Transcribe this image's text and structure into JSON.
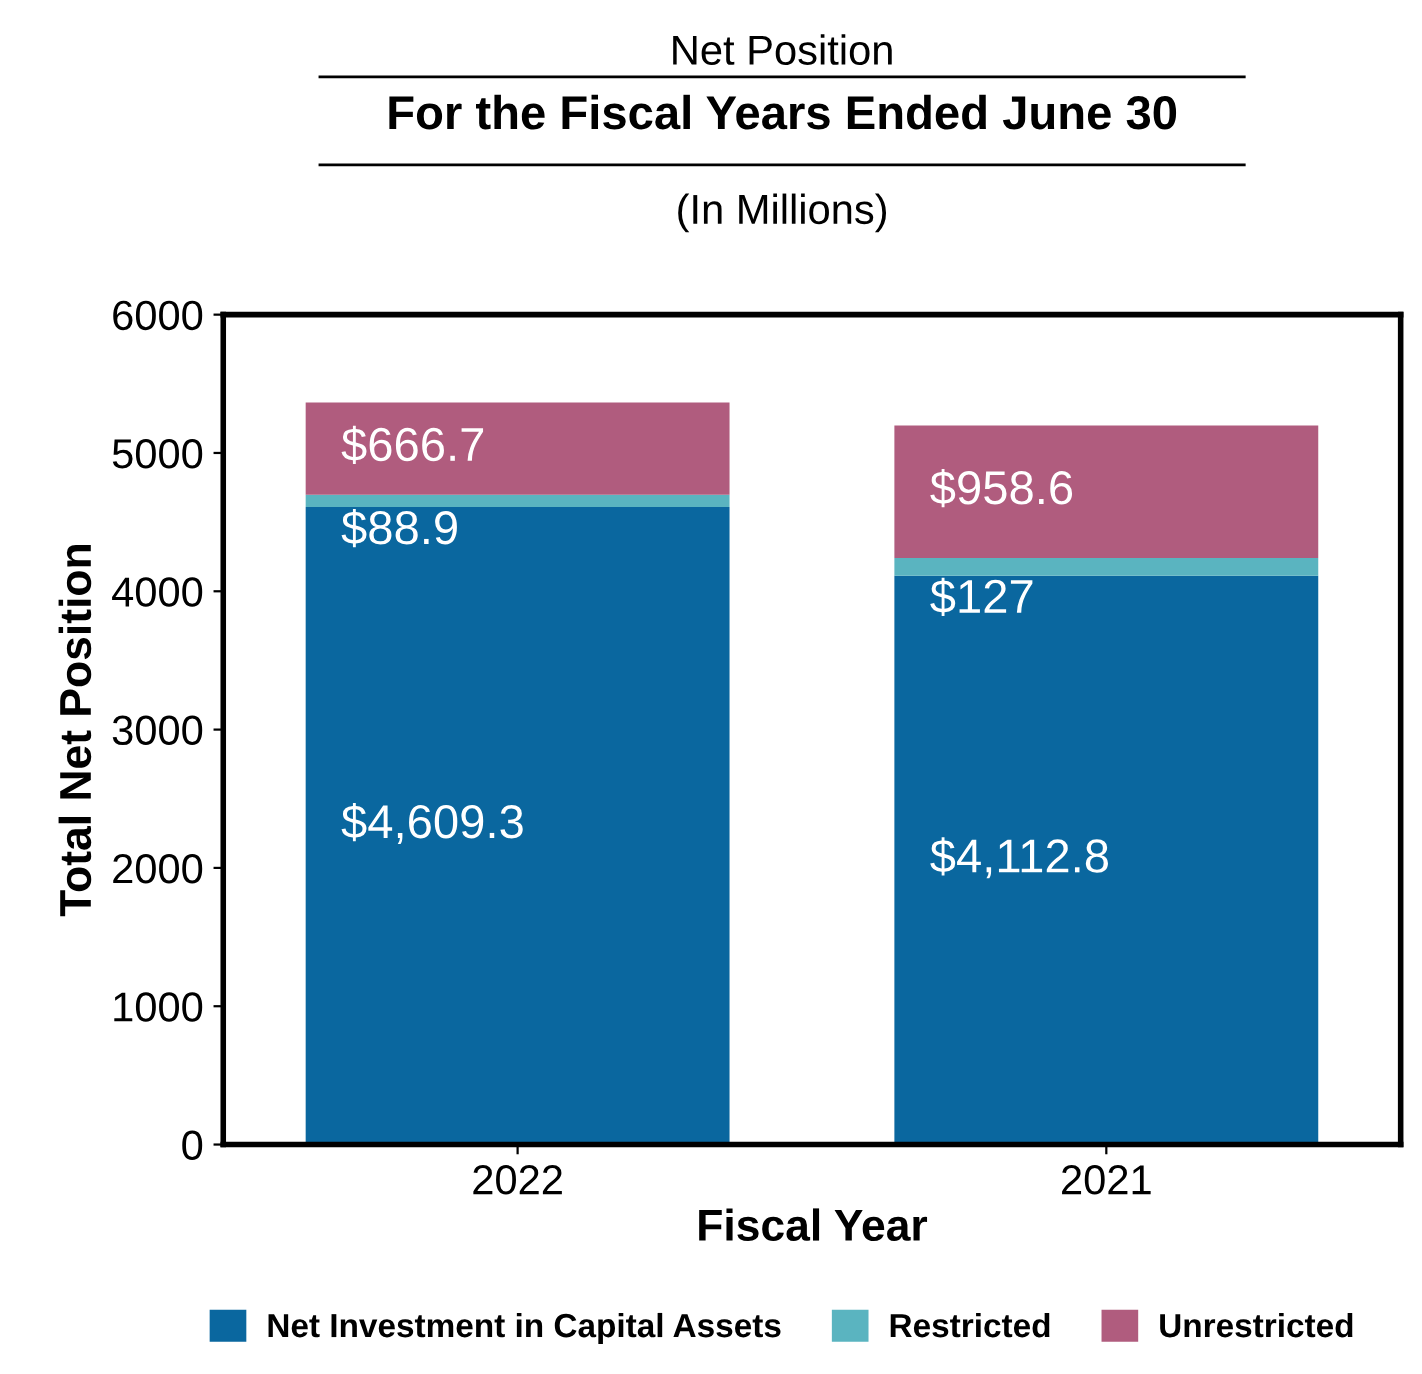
{
  "chart_data": {
    "type": "bar",
    "title": "Net Position",
    "subtitle": "For the Fiscal Years Ended June 30",
    "annotations": [
      "(In Millions)"
    ],
    "xlabel": "Fiscal Year",
    "ylabel": "Total Net Position",
    "categories": [
      "2022",
      "2021"
    ],
    "stacked": true,
    "series": [
      {
        "name": "Net Investment in Capital Assets",
        "color": "#0a679f",
        "values": [
          4609.3,
          4112.8
        ],
        "value_labels": [
          "$4,609.3",
          "$4,112.8"
        ]
      },
      {
        "name": "Restricted",
        "color": "#5ab4c0",
        "values": [
          88.9,
          127
        ],
        "value_labels": [
          "$88.9",
          "$127"
        ]
      },
      {
        "name": "Unrestricted",
        "color": "#b05c7e",
        "values": [
          666.7,
          958.6
        ],
        "value_labels": [
          "$666.7",
          "$958.6"
        ]
      }
    ],
    "ylim": [
      0,
      6000
    ],
    "yticks": [
      0,
      1000,
      2000,
      3000,
      4000,
      5000,
      6000
    ],
    "grid": false,
    "legend": "bottom"
  }
}
